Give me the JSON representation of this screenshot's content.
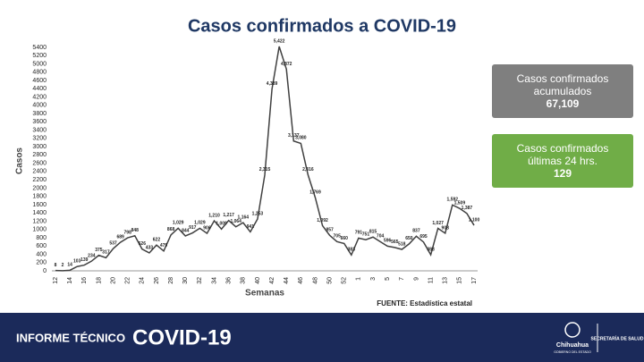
{
  "chart_data": {
    "type": "line",
    "title": "Casos confirmados a COVID-19",
    "x_label": "Semanas",
    "y_label": "Casos",
    "source": "FUENTE: Estadística estatal",
    "color": "#404040",
    "categories": [
      "12",
      null,
      "14",
      null,
      "16",
      null,
      "18",
      null,
      "20",
      null,
      "22",
      null,
      "24",
      null,
      "26",
      null,
      "28",
      null,
      "30",
      null,
      "32",
      null,
      "34",
      null,
      "36",
      null,
      "38",
      null,
      "40",
      null,
      "42",
      null,
      "44",
      null,
      "46",
      null,
      "48",
      null,
      "50",
      null,
      "52",
      null,
      "1",
      null,
      "3",
      null,
      "5",
      null,
      "7",
      null,
      "9",
      null,
      "11",
      null,
      "13",
      null,
      "15",
      null,
      "17"
    ],
    "values": [
      8,
      2,
      14,
      103,
      139,
      234,
      375,
      317,
      537,
      689,
      798,
      848,
      526,
      433,
      622,
      479,
      868,
      1029,
      844,
      917,
      1029,
      906,
      1210,
      1009,
      1217,
      1064,
      1164,
      941,
      1253,
      2315,
      4389,
      5422,
      4872,
      3137,
      3080,
      2316,
      1769,
      1092,
      857,
      705,
      660,
      383,
      791,
      751,
      815,
      704,
      596,
      565,
      518,
      650,
      837,
      695,
      388,
      1027,
      908,
      1592,
      1509,
      1387,
      1100
    ],
    "value_labels": [
      "8",
      "2",
      "14",
      "103",
      "139",
      "234",
      "375",
      "317",
      "537",
      "689",
      "798",
      "848",
      "526",
      "433",
      "622",
      "479",
      "868",
      "1,029",
      "844",
      "917",
      "1,029",
      "906",
      "1,210",
      "1,009",
      "1,217",
      "1,064",
      "1,164",
      "941",
      "1,253",
      "2,315",
      "4,389",
      "5,422",
      "4,872",
      "3,137",
      "3,080",
      "2,316",
      "1,769",
      "1,092",
      "857",
      "705",
      "660",
      "383",
      "791",
      "751",
      "815",
      "704",
      "596",
      "565",
      "518",
      "650",
      "837",
      "695",
      "388",
      "1,027",
      "908",
      "1,592",
      "1,509",
      "1,387",
      "1,100"
    ],
    "ylim": [
      0,
      5400
    ],
    "yticks": [
      0,
      200,
      400,
      600,
      800,
      1000,
      1200,
      1400,
      1600,
      1800,
      2000,
      2200,
      2400,
      2600,
      2800,
      3000,
      3200,
      3400,
      3600,
      3800,
      4000,
      4200,
      4400,
      4600,
      4800,
      5000,
      5200,
      5400
    ],
    "grid": false
  },
  "cards": [
    {
      "label": "Casos confirmados acumulados",
      "value": "67,109",
      "color": "#7f7f7f"
    },
    {
      "label": "Casos confirmados últimas 24 hrs.",
      "value": "129",
      "color": "#70ad47"
    }
  ],
  "footer": {
    "report": "INFORME TÉCNICO",
    "topic": "COVID-19",
    "state": "Chihuahua",
    "government": "GOBIERNO DEL ESTADO",
    "department": "SECRETARÍA DE SALUD"
  }
}
